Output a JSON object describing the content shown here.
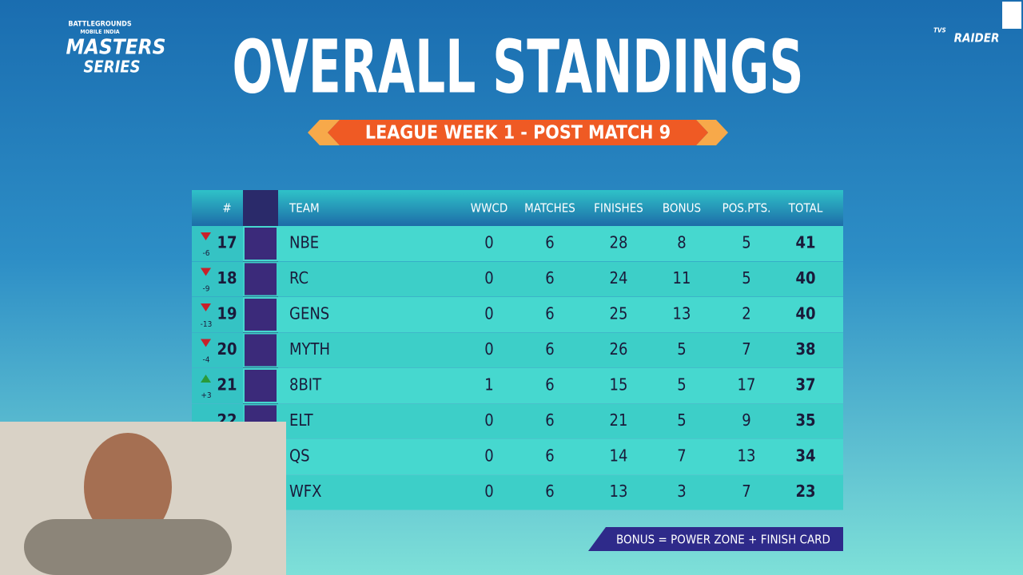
{
  "header": {
    "title": "OVERALL STANDINGS",
    "subtitle": "LEAGUE WEEK 1 - POST MATCH 9",
    "event_logo": {
      "line1": "BATTLEGROUNDS",
      "line2": "MOBILE INDIA",
      "line3": "MASTERS",
      "line4": "SERIES"
    },
    "sponsor": {
      "brand": "TVS",
      "name": "RAIDER"
    }
  },
  "table": {
    "columns": [
      "#",
      "TEAM",
      "WWCD",
      "MATCHES",
      "FINISHES",
      "BONUS",
      "POS.PTS.",
      "TOTAL"
    ],
    "rows": [
      {
        "rank": 17,
        "change": "-6",
        "team": "NBE",
        "wwcd": 0,
        "matches": 6,
        "finishes": 28,
        "bonus": 8,
        "pos_pts": 5,
        "total": 41
      },
      {
        "rank": 18,
        "change": "-9",
        "team": "RC",
        "wwcd": 0,
        "matches": 6,
        "finishes": 24,
        "bonus": 11,
        "pos_pts": 5,
        "total": 40
      },
      {
        "rank": 19,
        "change": "-13",
        "team": "GENS",
        "wwcd": 0,
        "matches": 6,
        "finishes": 25,
        "bonus": 13,
        "pos_pts": 2,
        "total": 40
      },
      {
        "rank": 20,
        "change": "-4",
        "team": "MYTH",
        "wwcd": 0,
        "matches": 6,
        "finishes": 26,
        "bonus": 5,
        "pos_pts": 7,
        "total": 38
      },
      {
        "rank": 21,
        "change": "+3",
        "team": "8BIT",
        "wwcd": 1,
        "matches": 6,
        "finishes": 15,
        "bonus": 5,
        "pos_pts": 17,
        "total": 37
      },
      {
        "rank": 22,
        "change": null,
        "team": "ELT",
        "wwcd": 0,
        "matches": 6,
        "finishes": 21,
        "bonus": 5,
        "pos_pts": 9,
        "total": 35
      },
      {
        "rank": null,
        "change": null,
        "team": "QS",
        "wwcd": 0,
        "matches": 6,
        "finishes": 14,
        "bonus": 7,
        "pos_pts": 13,
        "total": 34
      },
      {
        "rank": null,
        "change": null,
        "team": "WFX",
        "wwcd": 0,
        "matches": 6,
        "finishes": 13,
        "bonus": 3,
        "pos_pts": 7,
        "total": 23
      }
    ]
  },
  "footer": {
    "note": "BONUS = POWER ZONE + FINISH CARD"
  }
}
